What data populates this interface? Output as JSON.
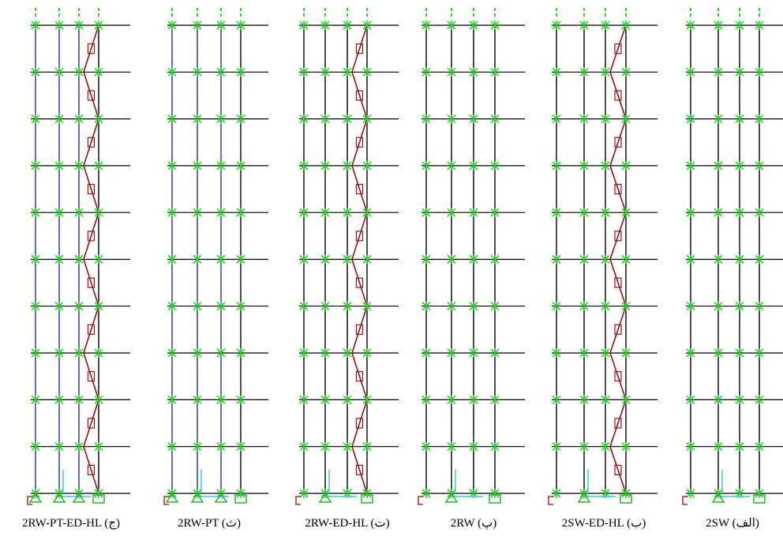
{
  "panels": [
    {
      "caption": "2RW-PT-ED-HL (ج)"
    },
    {
      "caption": "2RW-PT (ث)"
    },
    {
      "caption": "2RW-ED-HL (ت)"
    },
    {
      "caption": "2RW (پ)"
    },
    {
      "caption": "2SW-ED-HL (ب)"
    },
    {
      "caption": "2SW (الف)"
    }
  ]
}
